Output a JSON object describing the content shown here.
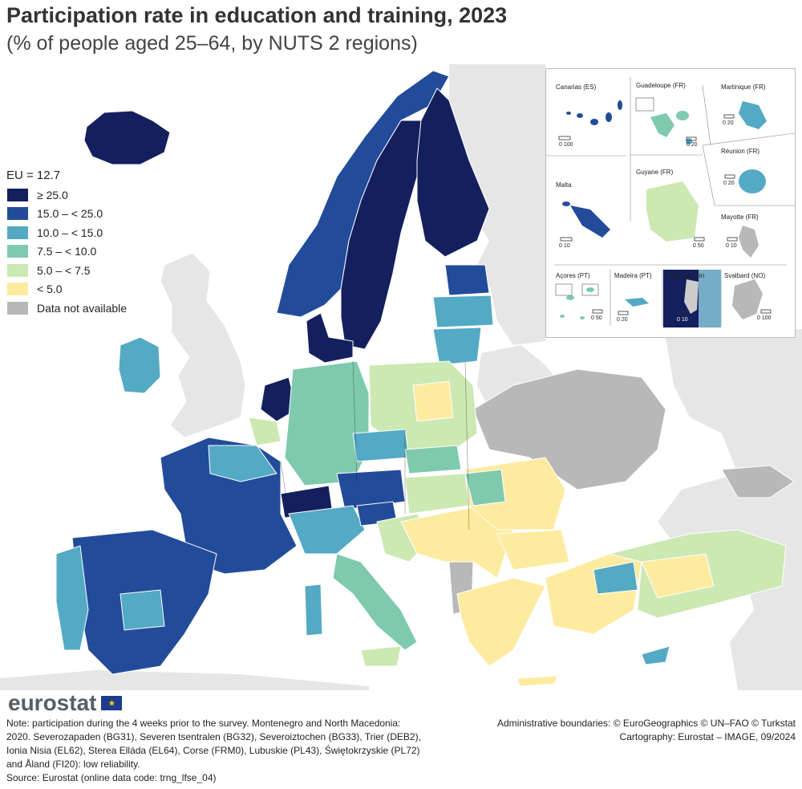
{
  "title": "Participation rate in education and training, 2023",
  "subtitle": "(% of people aged 25–64, by NUTS 2 regions)",
  "legend": {
    "eu_label": "EU = 12.7",
    "items": [
      {
        "label": "≥ 25.0",
        "color": "#141f5e"
      },
      {
        "label": "15.0 – < 25.0",
        "color": "#224c9a"
      },
      {
        "label": "10.0 – < 15.0",
        "color": "#54a9c4"
      },
      {
        "label": "7.5 – < 10.0",
        "color": "#7fcaae"
      },
      {
        "label": "5.0 – < 7.5",
        "color": "#cce8b3"
      },
      {
        "label": "< 5.0",
        "color": "#fdeba0"
      },
      {
        "label": "Data not available",
        "color": "#b8b8b8"
      }
    ]
  },
  "insets": {
    "canarias": "Canarias (ES)",
    "guadeloupe": "Guadeloupe (FR)",
    "martinique": "Martinique (FR)",
    "reunion": "Réunion (FR)",
    "malta": "Malta",
    "guyane": "Guyane (FR)",
    "mayotte": "Mayotte (FR)",
    "acores": "Açores (PT)",
    "madeira": "Madeira (PT)",
    "liechtenstein": "Liechtenstein",
    "svalbard": "Svalbard (NO)",
    "scales": {
      "canarias": "0  100",
      "guadeloupe": "0  20",
      "martinique": "0  20",
      "reunion": "0  20",
      "malta": "0  10",
      "guyane": "0  50",
      "mayotte": "0  10",
      "acores": "0  50",
      "madeira": "0  20",
      "liechtenstein": "0  10",
      "svalbard": "0 100"
    }
  },
  "logo": {
    "text": "eurostat",
    "flag": "★"
  },
  "note": "Note: participation during the 4 weeks prior to the survey. Montenegro and North Macedonia: 2020. Severozapaden (BG31), Severen tsentralen (BG32), Severoiztochen (BG33), Trier (DEB2), Ionia Nisia (EL62), Sterea Elláda (EL64), Corse (FRM0), Lubuskie (PL43), Świętokrzyskie (PL72) and Åland (FI20): low reliability.",
  "source": "Source: Eurostat (online data code: trng_lfse_04)",
  "credits": {
    "line1": "Administrative boundaries: © EuroGeographics © UN–FAO © Turkstat",
    "line2": "Cartography: Eurostat – IMAGE, 09/2024"
  }
}
